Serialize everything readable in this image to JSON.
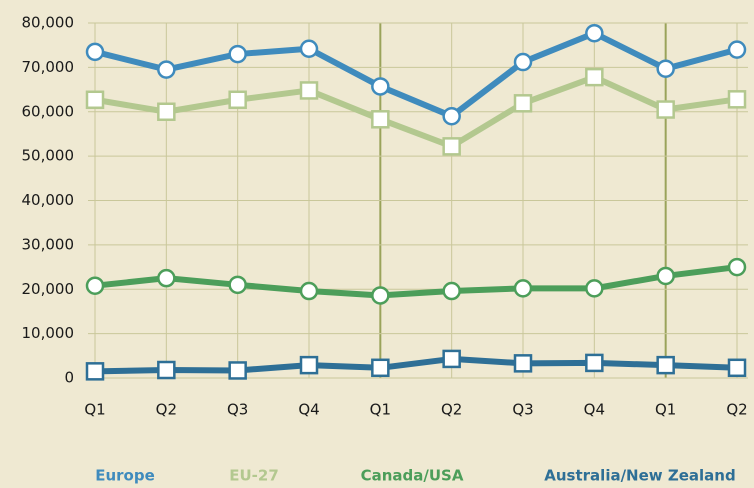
{
  "chart_data": {
    "type": "line",
    "categories": [
      "Q1",
      "Q2",
      "Q3",
      "Q4",
      "Q1",
      "Q2",
      "Q3",
      "Q4",
      "Q1",
      "Q2"
    ],
    "series": [
      {
        "name": "Europe",
        "color": "#3f8bbd",
        "marker": "circle",
        "values": [
          73500,
          69500,
          73000,
          74200,
          65700,
          59000,
          71200,
          77700,
          69700,
          74000
        ]
      },
      {
        "name": "EU-27",
        "color": "#b3c88f",
        "marker": "square",
        "values": [
          62700,
          60000,
          62700,
          64800,
          58300,
          52200,
          61900,
          67800,
          60500,
          62800
        ]
      },
      {
        "name": "Canada/USA",
        "color": "#4c9e5a",
        "marker": "circle",
        "values": [
          20800,
          22500,
          21000,
          19600,
          18600,
          19600,
          20200,
          20200,
          23000,
          25000
        ]
      },
      {
        "name": "Australia/New Zealand",
        "color": "#2e6f96",
        "marker": "square",
        "values": [
          1500,
          1800,
          1700,
          2900,
          2300,
          4300,
          3300,
          3400,
          2900,
          2300
        ]
      }
    ],
    "ylim": [
      0,
      80000
    ],
    "yticks": [
      0,
      {
        "value": 10000,
        "label": "10,000"
      },
      {
        "value": 20000,
        "label": "20,000"
      },
      {
        "value": 30000,
        "label": "30,000"
      },
      {
        "value": 40000,
        "label": "40,000"
      },
      {
        "value": 50000,
        "label": "50,000"
      },
      {
        "value": 60000,
        "label": "60,000"
      },
      {
        "value": 70000,
        "label": "70,000"
      },
      {
        "value": 80000,
        "label": "80,000"
      }
    ],
    "grid": true,
    "legend": "bottom"
  }
}
